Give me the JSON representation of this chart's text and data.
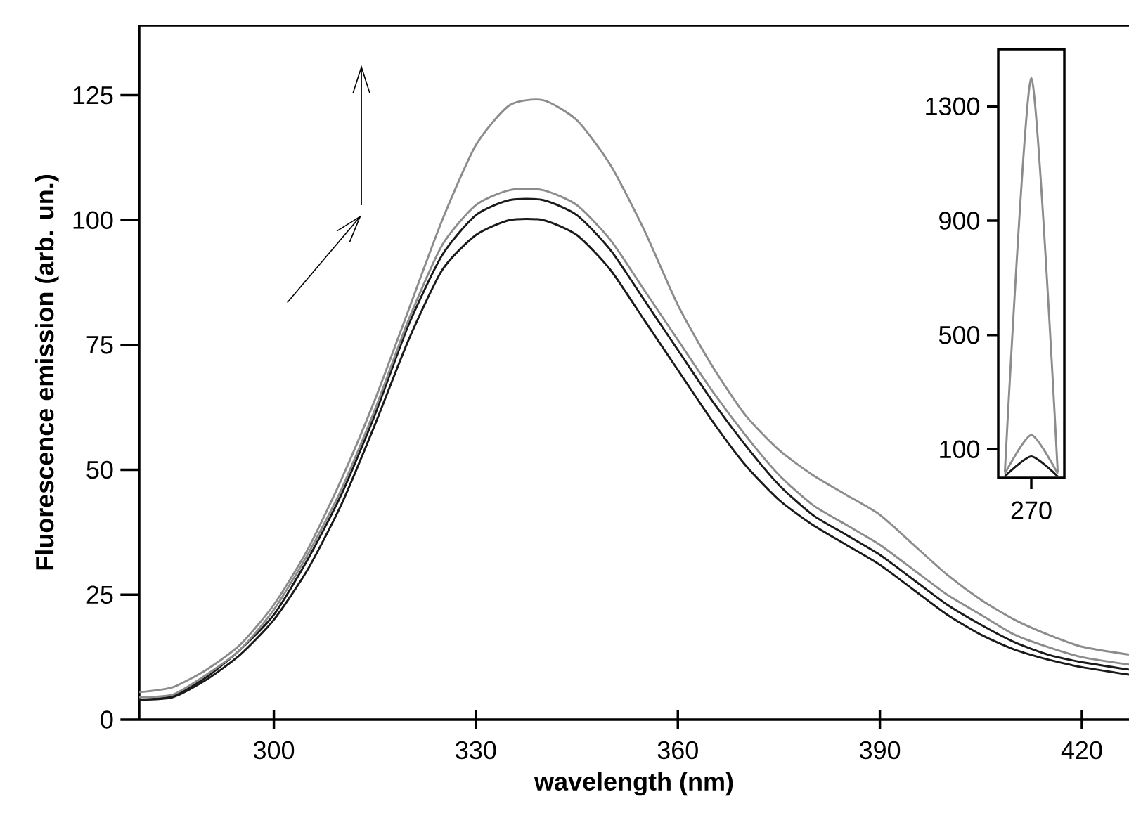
{
  "chart_data": [
    {
      "type": "line",
      "xlabel": "wavelength (nm)",
      "ylabel": "Fluorescence emission (arb. un.)",
      "x": [
        280,
        285,
        290,
        295,
        300,
        305,
        310,
        315,
        320,
        325,
        330,
        335,
        340,
        345,
        350,
        355,
        360,
        365,
        370,
        375,
        380,
        385,
        390,
        395,
        400,
        405,
        410,
        415,
        420,
        427
      ],
      "xlim": [
        280,
        427
      ],
      "ylim": [
        0,
        139
      ],
      "xticks": [
        300,
        330,
        360,
        390,
        420
      ],
      "yticks": [
        0,
        25,
        50,
        75,
        100,
        125
      ],
      "series": [
        {
          "color": "#1a1a1a",
          "values": [
            4,
            4.5,
            8,
            13,
            20,
            30,
            43,
            59,
            76,
            90,
            97,
            100,
            100,
            97,
            90,
            80,
            70,
            60,
            51,
            44,
            39,
            35,
            31,
            26,
            21,
            17,
            14,
            12,
            10.5,
            9
          ]
        },
        {
          "color": "#1a1a1a",
          "values": [
            4,
            4.7,
            8.5,
            14,
            21,
            32,
            45,
            61,
            79,
            93,
            101,
            104,
            104,
            101,
            94,
            84,
            74,
            64,
            55,
            47,
            41,
            37,
            33,
            28,
            23,
            19,
            15.5,
            13,
            11.5,
            10
          ]
        },
        {
          "color": "#8c8c8c",
          "values": [
            4.5,
            5,
            9,
            14,
            22,
            33,
            46,
            62,
            80,
            95,
            103,
            106,
            106,
            103,
            96,
            86,
            76,
            66,
            57,
            49,
            43,
            39,
            35,
            30,
            25,
            21,
            17,
            14.5,
            12.5,
            11
          ]
        },
        {
          "color": "#8c8c8c",
          "values": [
            5.5,
            6.5,
            10,
            15,
            23,
            34,
            48,
            64,
            82,
            100,
            115,
            123,
            124,
            120,
            111,
            98,
            83,
            71,
            61,
            54,
            49,
            45,
            41,
            35,
            29,
            24,
            20,
            17,
            14.6,
            13
          ]
        }
      ]
    },
    {
      "type": "line",
      "categories": [
        null,
        "270",
        null
      ],
      "ylim": [
        0,
        1500
      ],
      "yticks": [
        100,
        500,
        900,
        1300
      ],
      "series": [
        {
          "color": "#8c8c8c",
          "values": [
            20,
            1400,
            20
          ]
        },
        {
          "color": "#8c8c8c",
          "values": [
            15,
            150,
            15
          ]
        },
        {
          "color": "#1a1a1a",
          "values": [
            5,
            75,
            5
          ]
        }
      ]
    }
  ]
}
